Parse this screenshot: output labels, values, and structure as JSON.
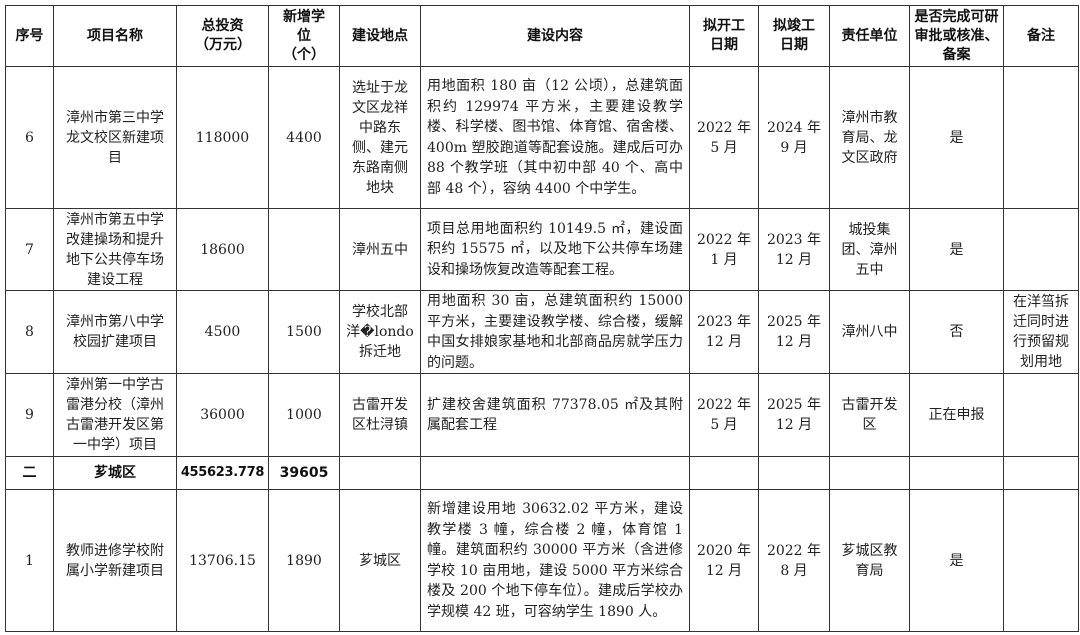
{
  "headers": [
    "序号",
    "项目名称",
    "总投资（万元）",
    "新增学位（个）",
    "建设地点",
    "建设内容",
    "拟开工日期",
    "拟竣工日期",
    "责任单位",
    "是否完成可研审批或核准、备案",
    "备注"
  ],
  "rows": [
    {
      "no": "6",
      "name": "漳州市第三中学龙文校区新建项目",
      "investment": "118000",
      "seats": "4400",
      "location": "选址于龙文区龙祥中路东侧、建元东路南侧地块",
      "content": "用地面积 180 亩（12 公顷），总建筑面积约 129974 平方米，主要建设教学楼、科学楼、图书馆、体育馆、宿舍楼、400m 塑胶跑道等配套设施。建成后可办 88 个教学班（其中初中部 40 个、高中部 48 个），容纳 4400 个中学生。",
      "start": "2022 年 5 月",
      "end": "2024 年 9 月",
      "unit": "漳州市教育局、龙文区政府",
      "approved": "是",
      "remark": ""
    },
    {
      "no": "7",
      "name": "漳州市第五中学改建操场和提升地下公共停车场建设工程",
      "investment": "18600",
      "seats": "",
      "location": "漳州五中",
      "content": "项目总用地面积约 10149.5 ㎡，建设面积约 15575 ㎡，以及地下公共停车场建设和操场恢复改造等配套工程。",
      "start": "2022 年 1 月",
      "end": "2023 年 12 月",
      "unit": "城投集团、漳州五中",
      "approved": "是",
      "remark": ""
    },
    {
      "no": "8",
      "name": "漳州市第八中学校园扩建项目",
      "investment": "4500",
      "seats": "1500",
      "location": "学校北部洋�londo拆迁地",
      "content": "用地面积 30 亩，总建筑面积约 15000 平方米，主要建设教学楼、综合楼，缓解中国女排娘家基地和北部商品房就学压力的问题。",
      "start": "2023 年 12 月",
      "end": "2025 年 12 月",
      "unit": "漳州八中",
      "approved": "否",
      "remark": "在洋�London拆迁同时进行预留规划用地"
    },
    {
      "no": "9",
      "name": "漳州第一中学古雷港分校（漳州古雷港开发区第一中学）项目",
      "investment": "36000",
      "seats": "1000",
      "location": "古雷开发区杜浔镇",
      "content": "扩建校舍建筑面积 77378.05 ㎡及其附属配套工程",
      "start": "2022 年 5 月",
      "end": "2025 年 12 月",
      "unit": "古雷开发区",
      "approved": "正在申报",
      "remark": ""
    }
  ],
  "section": {
    "no": "二",
    "name": "芗城区",
    "investment": "455623.778",
    "seats": "39605"
  },
  "section_rows": [
    {
      "no": "1",
      "name": "教师进修学校附属小学新建项目",
      "investment": "13706.15",
      "seats": "1890",
      "location": "芗城区",
      "content": "新增建设用地 30632.02 平方米，建设教学楼 3 幢，综合楼 2 幢，体育馆 1 幢。建筑面积约 30000 平方米（含进修学校 10 亩用地，建设 5000 平方米综合楼及 200 个地下停车位）。建成后学校办学规模 42 班，可容纳学生 1890 人。",
      "start": "2020 年 12 月",
      "end": "2022 年 8 月",
      "unit": "芗城区教育局",
      "approved": "是",
      "remark": ""
    }
  ]
}
